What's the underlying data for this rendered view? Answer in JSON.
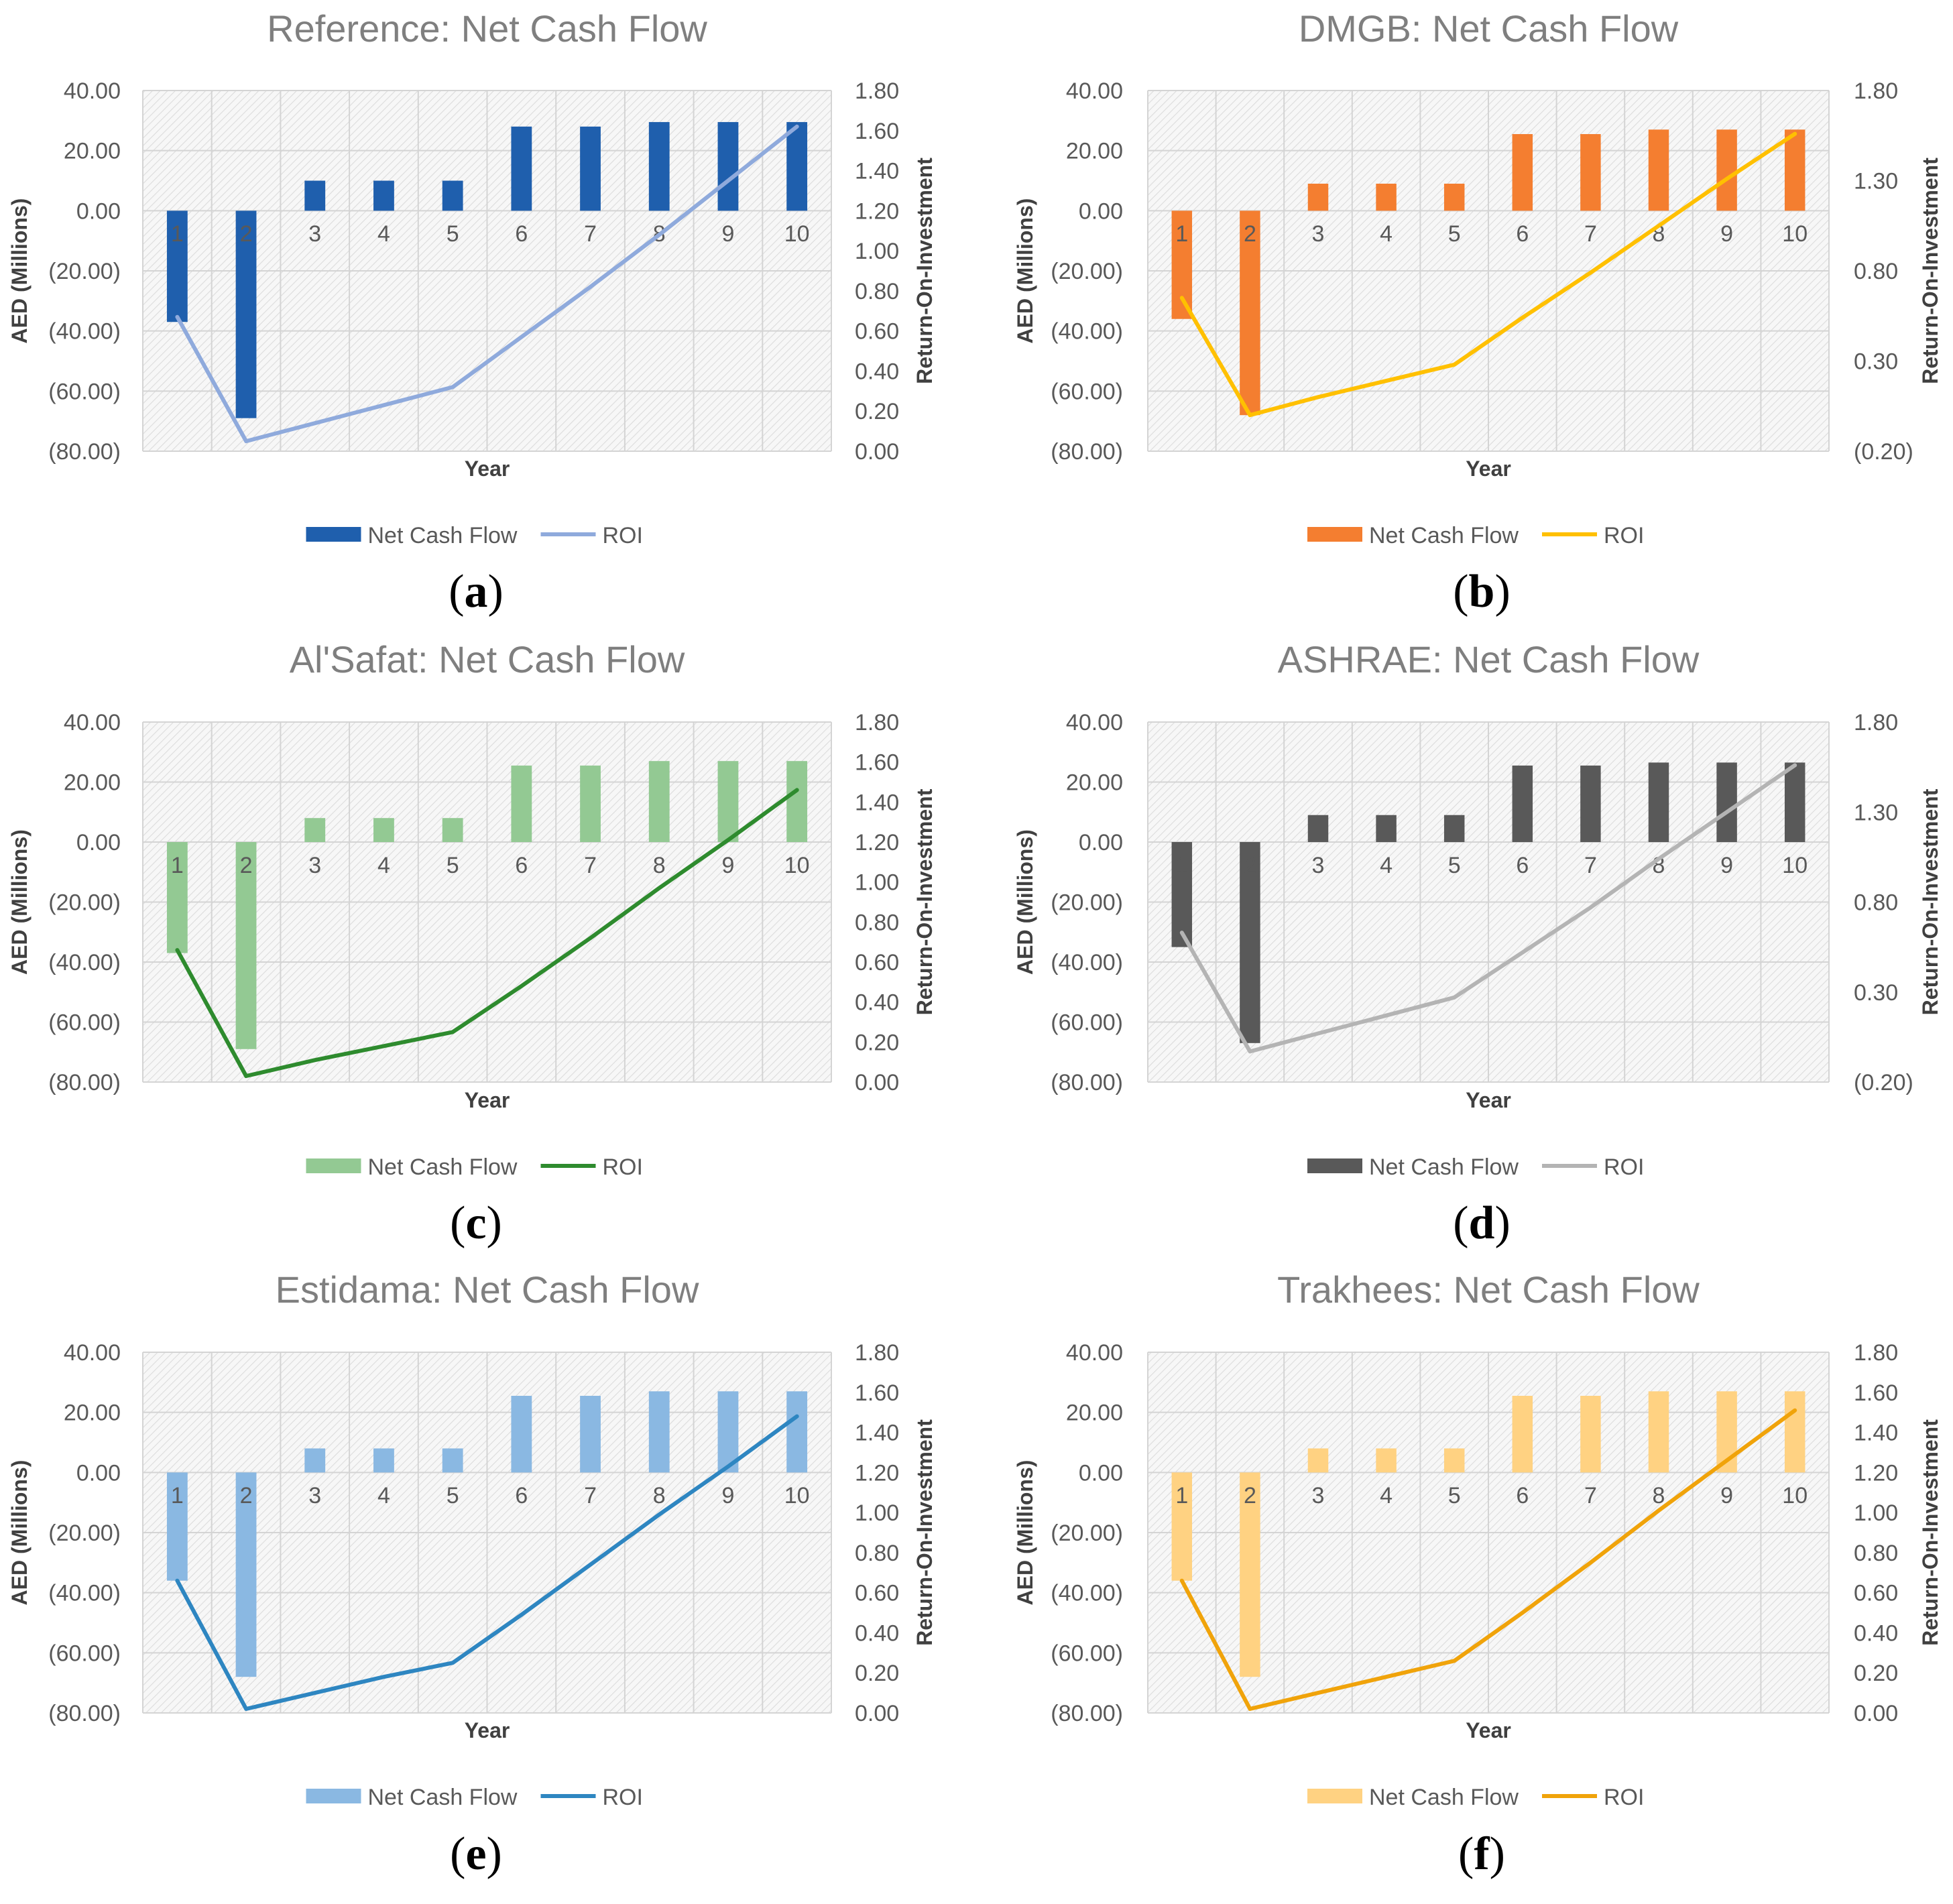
{
  "figure": {
    "panels": [
      {
        "letter": "a",
        "chart_data": {
          "type": "bar",
          "title": "Reference: Net Cash Flow",
          "xlabel": "Year",
          "ylabel": "AED (Millions)",
          "y2label": "Return-On-Investment",
          "categories": [
            "1",
            "2",
            "3",
            "4",
            "5",
            "6",
            "7",
            "8",
            "9",
            "10"
          ],
          "ylim": [
            -80,
            40
          ],
          "y_ticks": [
            "40.00",
            "20.00",
            "0.00",
            "(20.00)",
            "(40.00)",
            "(60.00)",
            "(80.00)"
          ],
          "y2lim": [
            0,
            1.8
          ],
          "y2_ticks": [
            "1.80",
            "1.60",
            "1.40",
            "1.20",
            "1.00",
            "0.80",
            "0.60",
            "0.40",
            "0.20",
            "0.00"
          ],
          "series": [
            {
              "name": "Net Cash Flow",
              "type": "bar",
              "axis": "left",
              "color": "#1f5fad",
              "values": [
                -37,
                -69,
                10,
                10,
                10,
                28,
                28,
                29.5,
                29.5,
                29.5
              ]
            },
            {
              "name": "ROI",
              "type": "line",
              "axis": "right",
              "color": "#8faadc",
              "values": [
                0.67,
                0.05,
                0.14,
                0.23,
                0.32,
                0.57,
                0.82,
                1.08,
                1.35,
                1.62
              ]
            }
          ],
          "legend": "bottom",
          "grid": true
        }
      },
      {
        "letter": "b",
        "chart_data": {
          "type": "bar",
          "title": "DMGB: Net Cash Flow",
          "xlabel": "Year",
          "ylabel": "AED (Millions)",
          "y2label": "Return-On-Investment",
          "categories": [
            "1",
            "2",
            "3",
            "4",
            "5",
            "6",
            "7",
            "8",
            "9",
            "10"
          ],
          "ylim": [
            -80,
            40
          ],
          "y_ticks": [
            "40.00",
            "20.00",
            "0.00",
            "(20.00)",
            "(40.00)",
            "(60.00)",
            "(80.00)"
          ],
          "y2lim": [
            -0.2,
            1.8
          ],
          "y2_ticks": [
            "1.80",
            "1.30",
            "0.80",
            "0.30",
            "(0.20)"
          ],
          "series": [
            {
              "name": "Net Cash Flow",
              "type": "bar",
              "axis": "left",
              "color": "#f47e30",
              "values": [
                -36,
                -68,
                9,
                9,
                9,
                25.5,
                25.5,
                27,
                27,
                27
              ]
            },
            {
              "name": "ROI",
              "type": "line",
              "axis": "right",
              "color": "#ffc000",
              "values": [
                0.65,
                0.0,
                0.1,
                0.19,
                0.28,
                0.54,
                0.79,
                1.05,
                1.31,
                1.56
              ]
            }
          ],
          "legend": "bottom",
          "grid": true
        }
      },
      {
        "letter": "c",
        "chart_data": {
          "type": "bar",
          "title": "Al'Safat: Net Cash Flow",
          "xlabel": "Year",
          "ylabel": "AED (Millions)",
          "y2label": "Return-On-Investment",
          "categories": [
            "1",
            "2",
            "3",
            "4",
            "5",
            "6",
            "7",
            "8",
            "9",
            "10"
          ],
          "ylim": [
            -80,
            40
          ],
          "y_ticks": [
            "40.00",
            "20.00",
            "0.00",
            "(20.00)",
            "(40.00)",
            "(60.00)",
            "(80.00)"
          ],
          "y2lim": [
            0,
            1.8
          ],
          "y2_ticks": [
            "1.80",
            "1.60",
            "1.40",
            "1.20",
            "1.00",
            "0.80",
            "0.60",
            "0.40",
            "0.20",
            "0.00"
          ],
          "series": [
            {
              "name": "Net Cash Flow",
              "type": "bar",
              "axis": "left",
              "color": "#93c993",
              "values": [
                -37,
                -69,
                8,
                8,
                8,
                25.5,
                25.5,
                27,
                27,
                27
              ]
            },
            {
              "name": "ROI",
              "type": "line",
              "axis": "right",
              "color": "#2e8b2e",
              "values": [
                0.66,
                0.03,
                0.11,
                0.18,
                0.25,
                0.48,
                0.72,
                0.97,
                1.21,
                1.46
              ]
            }
          ],
          "legend": "bottom",
          "grid": true
        }
      },
      {
        "letter": "d",
        "chart_data": {
          "type": "bar",
          "title": "ASHRAE: Net Cash Flow",
          "xlabel": "Year",
          "ylabel": "AED (Millions)",
          "y2label": "Return-On-Investment",
          "categories": [
            "1",
            "2",
            "3",
            "4",
            "5",
            "6",
            "7",
            "8",
            "9",
            "10"
          ],
          "ylim": [
            -80,
            40
          ],
          "y_ticks": [
            "40.00",
            "20.00",
            "0.00",
            "(20.00)",
            "(40.00)",
            "(60.00)",
            "(80.00)"
          ],
          "y2lim": [
            -0.2,
            1.8
          ],
          "y2_ticks": [
            "1.80",
            "1.30",
            "0.80",
            "0.30",
            "(0.20)"
          ],
          "series": [
            {
              "name": "Net Cash Flow",
              "type": "bar",
              "axis": "left",
              "color": "#595959",
              "values": [
                -35,
                -67,
                9,
                9,
                9,
                25.5,
                25.5,
                26.5,
                26.5,
                26.5
              ]
            },
            {
              "name": "ROI",
              "type": "line",
              "axis": "right",
              "color": "#b4b4b4",
              "values": [
                0.63,
                -0.03,
                0.07,
                0.17,
                0.27,
                0.52,
                0.77,
                1.04,
                1.3,
                1.56
              ]
            }
          ],
          "legend": "bottom",
          "grid": true
        }
      },
      {
        "letter": "e",
        "chart_data": {
          "type": "bar",
          "title": "Estidama: Net Cash Flow",
          "xlabel": "Year",
          "ylabel": "AED (Millions)",
          "y2label": "Return-On-Investment",
          "categories": [
            "1",
            "2",
            "3",
            "4",
            "5",
            "6",
            "7",
            "8",
            "9",
            "10"
          ],
          "ylim": [
            -80,
            40
          ],
          "y_ticks": [
            "40.00",
            "20.00",
            "0.00",
            "(20.00)",
            "(40.00)",
            "(60.00)",
            "(80.00)"
          ],
          "y2lim": [
            0,
            1.8
          ],
          "y2_ticks": [
            "1.80",
            "1.60",
            "1.40",
            "1.20",
            "1.00",
            "0.80",
            "0.60",
            "0.40",
            "0.20",
            "0.00"
          ],
          "series": [
            {
              "name": "Net Cash Flow",
              "type": "bar",
              "axis": "left",
              "color": "#8ab8e2",
              "values": [
                -36,
                -68,
                8,
                8,
                8,
                25.5,
                25.5,
                27,
                27,
                27
              ]
            },
            {
              "name": "ROI",
              "type": "line",
              "axis": "right",
              "color": "#2e86c1",
              "values": [
                0.66,
                0.02,
                0.1,
                0.18,
                0.25,
                0.49,
                0.74,
                0.99,
                1.23,
                1.48
              ]
            }
          ],
          "legend": "bottom",
          "grid": true
        }
      },
      {
        "letter": "f",
        "chart_data": {
          "type": "bar",
          "title": "Trakhees: Net Cash Flow",
          "xlabel": "Year",
          "ylabel": "AED (Millions)",
          "y2label": "Return-On-Investment",
          "categories": [
            "1",
            "2",
            "3",
            "4",
            "5",
            "6",
            "7",
            "8",
            "9",
            "10"
          ],
          "ylim": [
            -80,
            40
          ],
          "y_ticks": [
            "40.00",
            "20.00",
            "0.00",
            "(20.00)",
            "(40.00)",
            "(60.00)",
            "(80.00)"
          ],
          "y2lim": [
            0,
            1.8
          ],
          "y2_ticks": [
            "1.80",
            "1.60",
            "1.40",
            "1.20",
            "1.00",
            "0.80",
            "0.60",
            "0.40",
            "0.20",
            "0.00"
          ],
          "series": [
            {
              "name": "Net Cash Flow",
              "type": "bar",
              "axis": "left",
              "color": "#ffd282",
              "values": [
                -36,
                -68,
                8,
                8,
                8,
                25.5,
                25.5,
                27,
                27,
                27
              ]
            },
            {
              "name": "ROI",
              "type": "line",
              "axis": "right",
              "color": "#f0a30a",
              "values": [
                0.66,
                0.02,
                0.1,
                0.18,
                0.26,
                0.5,
                0.75,
                1.01,
                1.26,
                1.51
              ]
            }
          ],
          "legend": "bottom",
          "grid": true
        }
      }
    ]
  }
}
